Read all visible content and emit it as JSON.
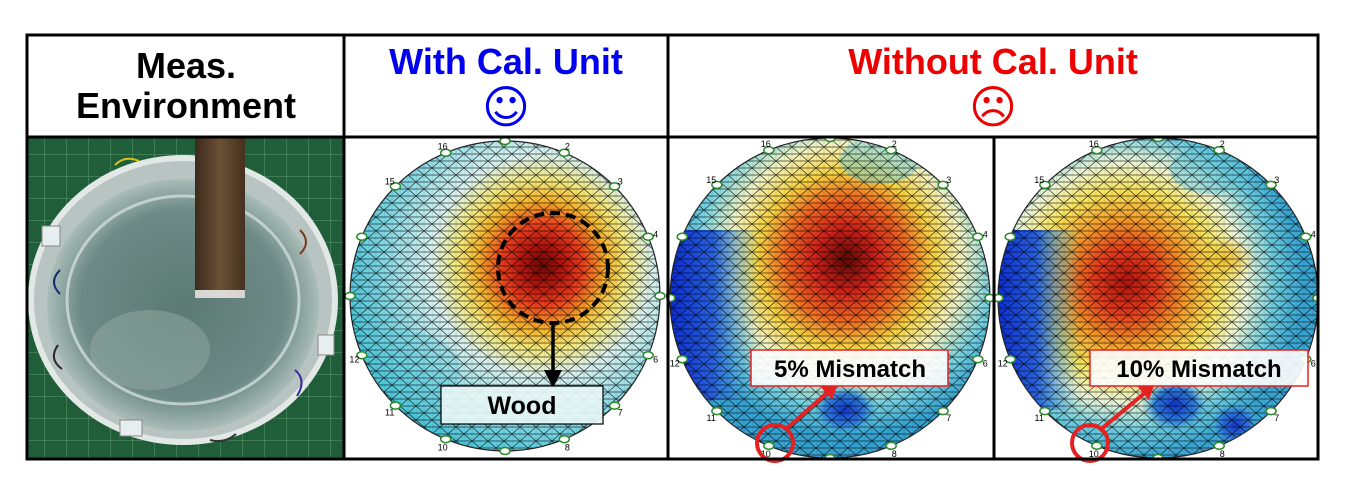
{
  "headers": {
    "env_title": "Meas.\nEnvironment",
    "with_title": "With Cal. Unit",
    "without_title": "Without Cal. Unit"
  },
  "icons": {
    "happy": "happy-face-icon",
    "sad": "sad-face-icon"
  },
  "annotations": {
    "wood": "Wood",
    "mismatch5": "5% Mismatch",
    "mismatch10": "10% Mismatch"
  },
  "electrode_labels": [
    "2",
    "3",
    "4",
    "5",
    "6",
    "7",
    "8",
    "10",
    "11",
    "12",
    "15",
    "16"
  ],
  "colors": {
    "with_title": "#0000ee",
    "without_title": "#ee0000",
    "annotation_border_red": "#e52222",
    "mesh_line": "#000000"
  }
}
